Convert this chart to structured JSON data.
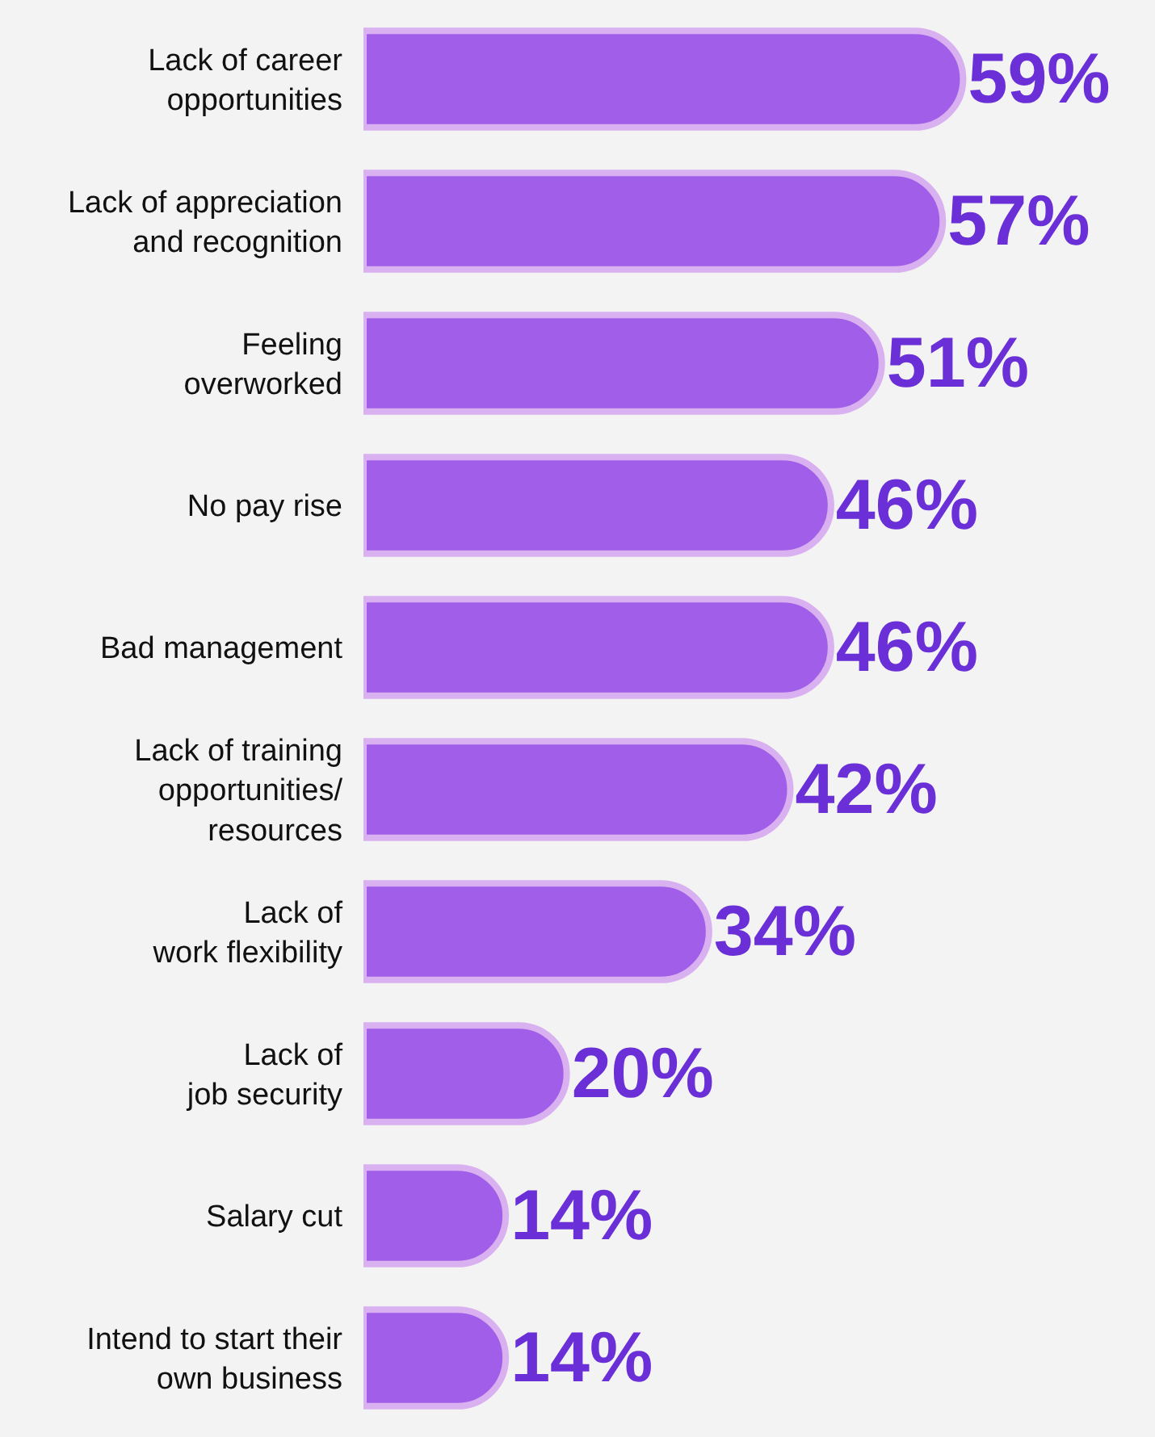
{
  "chart_data": {
    "type": "bar",
    "orientation": "horizontal",
    "categories": [
      "Lack of career\nopportunities",
      "Lack of appreciation\nand recognition",
      "Feeling\noverworked",
      "No pay rise",
      "Bad management",
      "Lack of training\nopportunities/\nresources",
      "Lack of\nwork flexibility",
      "Lack of\njob security",
      "Salary cut",
      "Intend to start their\nown business"
    ],
    "values": [
      59,
      57,
      51,
      46,
      46,
      42,
      34,
      20,
      14,
      14
    ],
    "value_labels": [
      "59%",
      "57%",
      "51%",
      "46%",
      "46%",
      "42%",
      "34%",
      "20%",
      "14%",
      "14%"
    ],
    "color": "#a15ee8",
    "grid": false,
    "legend": false,
    "tick_labels": "y"
  }
}
